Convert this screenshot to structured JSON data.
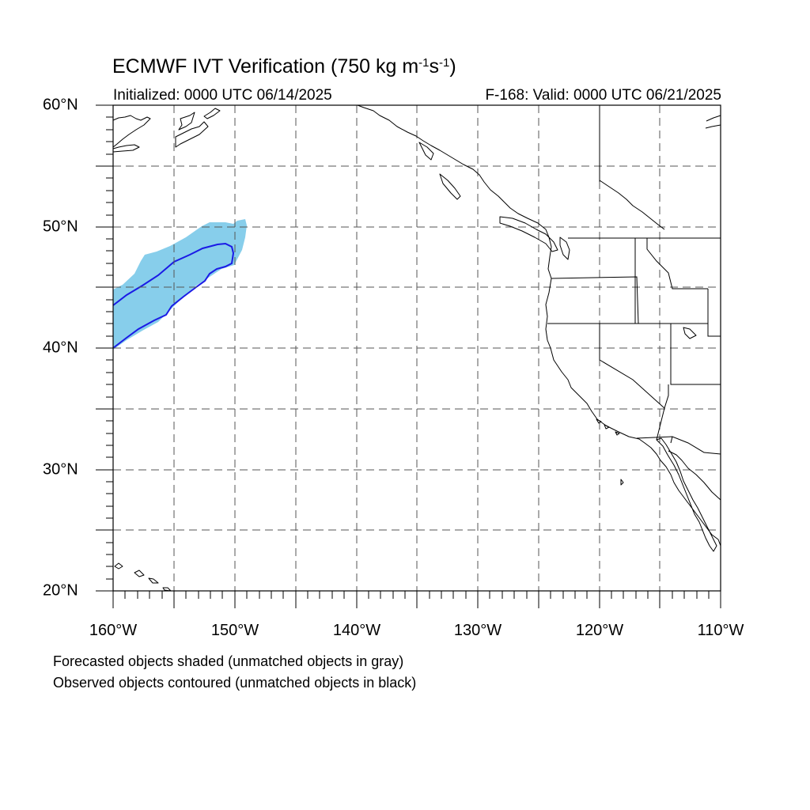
{
  "title": {
    "prefix": "ECMWF IVT Verification (750 kg m",
    "exp1": "-1",
    "mid": "s",
    "exp2": "-1",
    "suffix": ")"
  },
  "init_label": "Initialized: 0000 UTC 06/14/2025",
  "valid_label": "F-168: Valid: 0000 UTC 06/21/2025",
  "lat_labels": [
    "60°N",
    "50°N",
    "40°N",
    "30°N",
    "20°N"
  ],
  "lon_labels": [
    "160°W",
    "150°W",
    "140°W",
    "130°W",
    "120°W",
    "110°W"
  ],
  "notes": [
    "Forecasted objects shaded (unmatched objects in gray)",
    "Observed objects contoured (unmatched objects in black)"
  ],
  "map_extent": {
    "lon": [
      -160,
      -110
    ],
    "lat": [
      20,
      60
    ]
  },
  "colors": {
    "forecast_fill": "#87ceeb",
    "observed_contour": "#1a1ae6",
    "coastline": "#000000",
    "grid": "#555555"
  }
}
